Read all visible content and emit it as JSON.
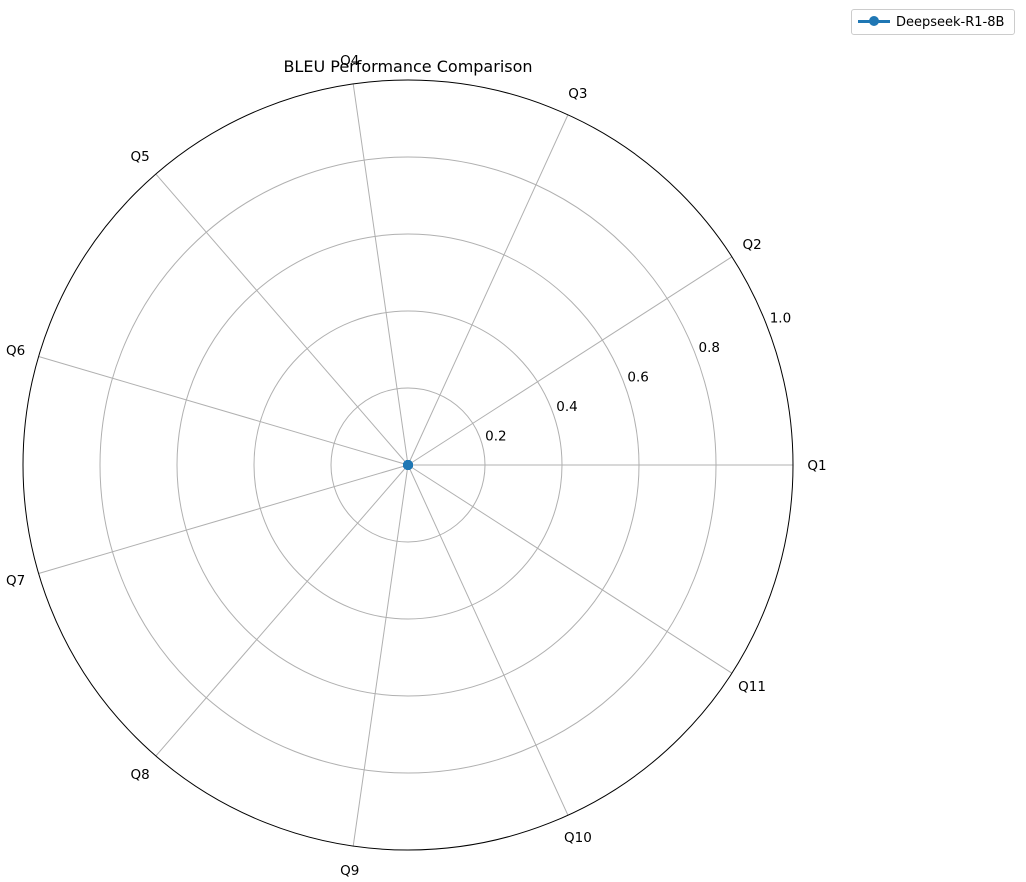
{
  "chart_data": {
    "type": "radar",
    "title": "BLEU Performance Comparison",
    "categories": [
      "Q1",
      "Q2",
      "Q3",
      "Q4",
      "Q5",
      "Q6",
      "Q7",
      "Q8",
      "Q9",
      "Q10",
      "Q11"
    ],
    "radial_ticks": [
      "0.2",
      "0.4",
      "0.6",
      "0.8",
      "1.0"
    ],
    "rlim": [
      0,
      1.0
    ],
    "grid": true,
    "legend_position": "top-right",
    "series": [
      {
        "name": "Deepseek-R1-8B",
        "color": "#1f77b4",
        "values": [
          0,
          0,
          0,
          0,
          0,
          0,
          0,
          0,
          0,
          0,
          0
        ]
      }
    ]
  }
}
